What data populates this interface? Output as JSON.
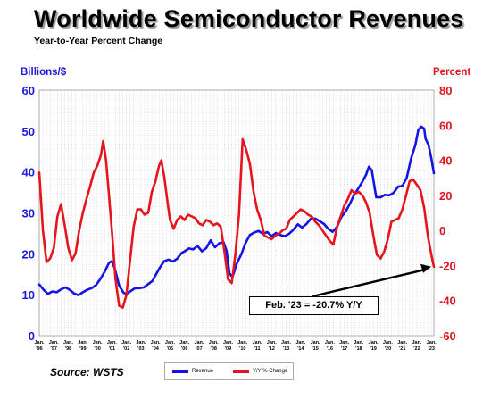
{
  "chart_data": {
    "type": "line",
    "title": "Worldwide Semiconductor Revenues",
    "subtitle": "Year-to-Year Percent Change",
    "y_left_label": "Billions/$",
    "y_right_label": "Percent",
    "y_left_lim": [
      0,
      60
    ],
    "y_right_lim": [
      -60,
      80
    ],
    "y_left_ticks": [
      "0",
      "10",
      "20",
      "30",
      "40",
      "50",
      "60"
    ],
    "y_right_ticks": [
      "-60",
      "-40",
      "-20",
      "0",
      "20",
      "40",
      "60",
      "80"
    ],
    "x_ticks": [
      {
        "top": "Jan.",
        "bottom": "'96"
      },
      {
        "top": "Jan.",
        "bottom": "'97"
      },
      {
        "top": "Jan.",
        "bottom": "'98"
      },
      {
        "top": "Jan.",
        "bottom": "'99"
      },
      {
        "top": "Jan.",
        "bottom": "'00"
      },
      {
        "top": "Jan.",
        "bottom": "'01"
      },
      {
        "top": "Jan.",
        "bottom": "'02"
      },
      {
        "top": "Jan.",
        "bottom": "'03"
      },
      {
        "top": "Jan.",
        "bottom": "'04"
      },
      {
        "top": "Jan.",
        "bottom": "'05"
      },
      {
        "top": "Jan.",
        "bottom": "'06"
      },
      {
        "top": "Jan.",
        "bottom": "'07"
      },
      {
        "top": "Jan.",
        "bottom": "'08"
      },
      {
        "top": "Jan.",
        "bottom": "'09"
      },
      {
        "top": "Jan.",
        "bottom": "'10"
      },
      {
        "top": "Jan.",
        "bottom": "'11"
      },
      {
        "top": "Jan.",
        "bottom": "'12"
      },
      {
        "top": "Jan.",
        "bottom": "'13"
      },
      {
        "top": "Jan.",
        "bottom": "'14"
      },
      {
        "top": "Jan.",
        "bottom": "'15"
      },
      {
        "top": "Jan.",
        "bottom": "'16"
      },
      {
        "top": "Jan.",
        "bottom": "'17"
      },
      {
        "top": "Jan.",
        "bottom": "'18"
      },
      {
        "top": "Jan.",
        "bottom": "'19"
      },
      {
        "top": "Jan.",
        "bottom": "'20"
      },
      {
        "top": "Jan.",
        "bottom": "'21"
      },
      {
        "top": "Jan.",
        "bottom": "'22"
      },
      {
        "top": "Jan.",
        "bottom": "'23"
      }
    ],
    "x_range": [
      1996.0,
      2023.17
    ],
    "grid": "vertical dotted",
    "legend_placement": "bottom-center",
    "series": [
      {
        "name": "Revenue",
        "axis": "left",
        "color": "#1414e6",
        "points": [
          [
            1996.0,
            12.5
          ],
          [
            1996.3,
            11.2
          ],
          [
            1996.6,
            10.2
          ],
          [
            1996.9,
            10.8
          ],
          [
            1997.2,
            10.6
          ],
          [
            1997.5,
            11.3
          ],
          [
            1997.8,
            11.8
          ],
          [
            1998.1,
            11.2
          ],
          [
            1998.4,
            10.3
          ],
          [
            1998.7,
            9.9
          ],
          [
            1999.0,
            10.6
          ],
          [
            1999.3,
            11.2
          ],
          [
            1999.6,
            11.6
          ],
          [
            1999.9,
            12.3
          ],
          [
            2000.2,
            13.8
          ],
          [
            2000.5,
            15.6
          ],
          [
            2000.8,
            17.8
          ],
          [
            2001.0,
            18.2
          ],
          [
            2001.2,
            16.4
          ],
          [
            2001.5,
            12.2
          ],
          [
            2001.8,
            10.5
          ],
          [
            2002.0,
            10.2
          ],
          [
            2002.3,
            10.9
          ],
          [
            2002.6,
            11.6
          ],
          [
            2002.9,
            11.6
          ],
          [
            2003.2,
            11.8
          ],
          [
            2003.5,
            12.6
          ],
          [
            2003.8,
            13.4
          ],
          [
            2004.0,
            14.7
          ],
          [
            2004.3,
            16.6
          ],
          [
            2004.6,
            18.2
          ],
          [
            2004.9,
            18.6
          ],
          [
            2005.2,
            18.1
          ],
          [
            2005.5,
            18.8
          ],
          [
            2005.8,
            20.2
          ],
          [
            2006.0,
            20.6
          ],
          [
            2006.3,
            21.3
          ],
          [
            2006.6,
            21.1
          ],
          [
            2006.9,
            21.9
          ],
          [
            2007.2,
            20.6
          ],
          [
            2007.5,
            21.4
          ],
          [
            2007.8,
            23.3
          ],
          [
            2008.1,
            21.6
          ],
          [
            2008.4,
            22.6
          ],
          [
            2008.7,
            22.8
          ],
          [
            2008.9,
            20.6
          ],
          [
            2009.1,
            15.2
          ],
          [
            2009.3,
            14.3
          ],
          [
            2009.6,
            17.6
          ],
          [
            2009.9,
            19.8
          ],
          [
            2010.2,
            22.6
          ],
          [
            2010.5,
            24.6
          ],
          [
            2010.8,
            25.2
          ],
          [
            2011.1,
            25.6
          ],
          [
            2011.4,
            24.9
          ],
          [
            2011.7,
            25.3
          ],
          [
            2012.0,
            24.3
          ],
          [
            2012.3,
            25.1
          ],
          [
            2012.6,
            24.6
          ],
          [
            2012.9,
            24.3
          ],
          [
            2013.2,
            24.9
          ],
          [
            2013.5,
            25.9
          ],
          [
            2013.8,
            27.2
          ],
          [
            2014.1,
            26.4
          ],
          [
            2014.4,
            27.3
          ],
          [
            2014.7,
            28.6
          ],
          [
            2015.0,
            28.6
          ],
          [
            2015.3,
            28.0
          ],
          [
            2015.6,
            27.3
          ],
          [
            2015.9,
            26.1
          ],
          [
            2016.2,
            25.4
          ],
          [
            2016.5,
            26.6
          ],
          [
            2016.8,
            29.0
          ],
          [
            2017.1,
            30.4
          ],
          [
            2017.4,
            32.3
          ],
          [
            2017.7,
            34.6
          ],
          [
            2017.9,
            35.6
          ],
          [
            2018.2,
            37.3
          ],
          [
            2018.5,
            39.3
          ],
          [
            2018.7,
            41.3
          ],
          [
            2018.9,
            40.4
          ],
          [
            2019.2,
            33.8
          ],
          [
            2019.5,
            33.8
          ],
          [
            2019.8,
            34.4
          ],
          [
            2020.1,
            34.3
          ],
          [
            2020.4,
            34.9
          ],
          [
            2020.7,
            36.4
          ],
          [
            2021.0,
            36.6
          ],
          [
            2021.3,
            38.6
          ],
          [
            2021.6,
            43.3
          ],
          [
            2021.9,
            46.6
          ],
          [
            2022.1,
            50.3
          ],
          [
            2022.3,
            51.1
          ],
          [
            2022.5,
            50.6
          ],
          [
            2022.6,
            48.1
          ],
          [
            2022.8,
            46.6
          ],
          [
            2023.0,
            43.3
          ],
          [
            2023.17,
            39.7
          ]
        ]
      },
      {
        "name": "Y/Y % Change",
        "axis": "right",
        "color": "#e6141e",
        "points": [
          [
            1996.0,
            33
          ],
          [
            1996.25,
            0
          ],
          [
            1996.5,
            -18
          ],
          [
            1996.75,
            -16
          ],
          [
            1997.0,
            -10
          ],
          [
            1997.25,
            8
          ],
          [
            1997.5,
            15
          ],
          [
            1997.75,
            3
          ],
          [
            1998.0,
            -10
          ],
          [
            1998.25,
            -17
          ],
          [
            1998.5,
            -13
          ],
          [
            1998.75,
            0
          ],
          [
            1999.0,
            10
          ],
          [
            1999.25,
            18
          ],
          [
            1999.5,
            25
          ],
          [
            1999.75,
            33
          ],
          [
            2000.0,
            37
          ],
          [
            2000.25,
            43
          ],
          [
            2000.4,
            51
          ],
          [
            2000.6,
            40
          ],
          [
            2000.8,
            20
          ],
          [
            2001.0,
            0
          ],
          [
            2001.25,
            -28
          ],
          [
            2001.5,
            -43
          ],
          [
            2001.75,
            -44
          ],
          [
            2002.0,
            -37
          ],
          [
            2002.25,
            -17
          ],
          [
            2002.5,
            2
          ],
          [
            2002.75,
            12
          ],
          [
            2003.0,
            12
          ],
          [
            2003.25,
            9
          ],
          [
            2003.5,
            10
          ],
          [
            2003.75,
            22
          ],
          [
            2004.0,
            28
          ],
          [
            2004.25,
            37
          ],
          [
            2004.4,
            40
          ],
          [
            2004.6,
            31
          ],
          [
            2004.8,
            18
          ],
          [
            2005.0,
            6
          ],
          [
            2005.25,
            1
          ],
          [
            2005.5,
            6
          ],
          [
            2005.75,
            8
          ],
          [
            2006.0,
            6
          ],
          [
            2006.25,
            9
          ],
          [
            2006.5,
            8
          ],
          [
            2006.75,
            7
          ],
          [
            2007.0,
            4
          ],
          [
            2007.25,
            3
          ],
          [
            2007.5,
            6
          ],
          [
            2007.75,
            5
          ],
          [
            2008.0,
            3
          ],
          [
            2008.25,
            4
          ],
          [
            2008.5,
            2
          ],
          [
            2008.75,
            -12
          ],
          [
            2009.0,
            -28
          ],
          [
            2009.25,
            -30
          ],
          [
            2009.5,
            -14
          ],
          [
            2009.75,
            9
          ],
          [
            2010.0,
            52
          ],
          [
            2010.25,
            46
          ],
          [
            2010.5,
            38
          ],
          [
            2010.75,
            22
          ],
          [
            2011.0,
            12
          ],
          [
            2011.25,
            6
          ],
          [
            2011.5,
            -3
          ],
          [
            2011.75,
            -4
          ],
          [
            2012.0,
            -5
          ],
          [
            2012.25,
            -3
          ],
          [
            2012.5,
            -2
          ],
          [
            2012.75,
            0
          ],
          [
            2013.0,
            1
          ],
          [
            2013.25,
            6
          ],
          [
            2013.5,
            8
          ],
          [
            2013.75,
            10
          ],
          [
            2014.0,
            12
          ],
          [
            2014.25,
            11
          ],
          [
            2014.5,
            9
          ],
          [
            2014.75,
            8
          ],
          [
            2015.0,
            5
          ],
          [
            2015.25,
            3
          ],
          [
            2015.5,
            0
          ],
          [
            2015.75,
            -3
          ],
          [
            2016.0,
            -6
          ],
          [
            2016.25,
            -8
          ],
          [
            2016.5,
            2
          ],
          [
            2016.75,
            8
          ],
          [
            2017.0,
            14
          ],
          [
            2017.25,
            18
          ],
          [
            2017.5,
            23
          ],
          [
            2017.75,
            21
          ],
          [
            2018.0,
            22
          ],
          [
            2018.25,
            20
          ],
          [
            2018.5,
            16
          ],
          [
            2018.75,
            10
          ],
          [
            2019.0,
            -3
          ],
          [
            2019.25,
            -14
          ],
          [
            2019.5,
            -16
          ],
          [
            2019.75,
            -12
          ],
          [
            2020.0,
            -5
          ],
          [
            2020.25,
            5
          ],
          [
            2020.5,
            6
          ],
          [
            2020.75,
            7
          ],
          [
            2021.0,
            12
          ],
          [
            2021.25,
            20
          ],
          [
            2021.5,
            28
          ],
          [
            2021.75,
            29
          ],
          [
            2022.0,
            26
          ],
          [
            2022.25,
            23
          ],
          [
            2022.5,
            13
          ],
          [
            2022.75,
            -3
          ],
          [
            2023.0,
            -14
          ],
          [
            2023.17,
            -20.7
          ]
        ]
      }
    ],
    "annotation": "Feb. '23 = -20.7% Y/Y"
  },
  "source": "Source: WSTS",
  "legend": [
    {
      "label": "Revenue",
      "color": "#1414e6"
    },
    {
      "label": "Y/Y % Change",
      "color": "#e6141e"
    }
  ]
}
